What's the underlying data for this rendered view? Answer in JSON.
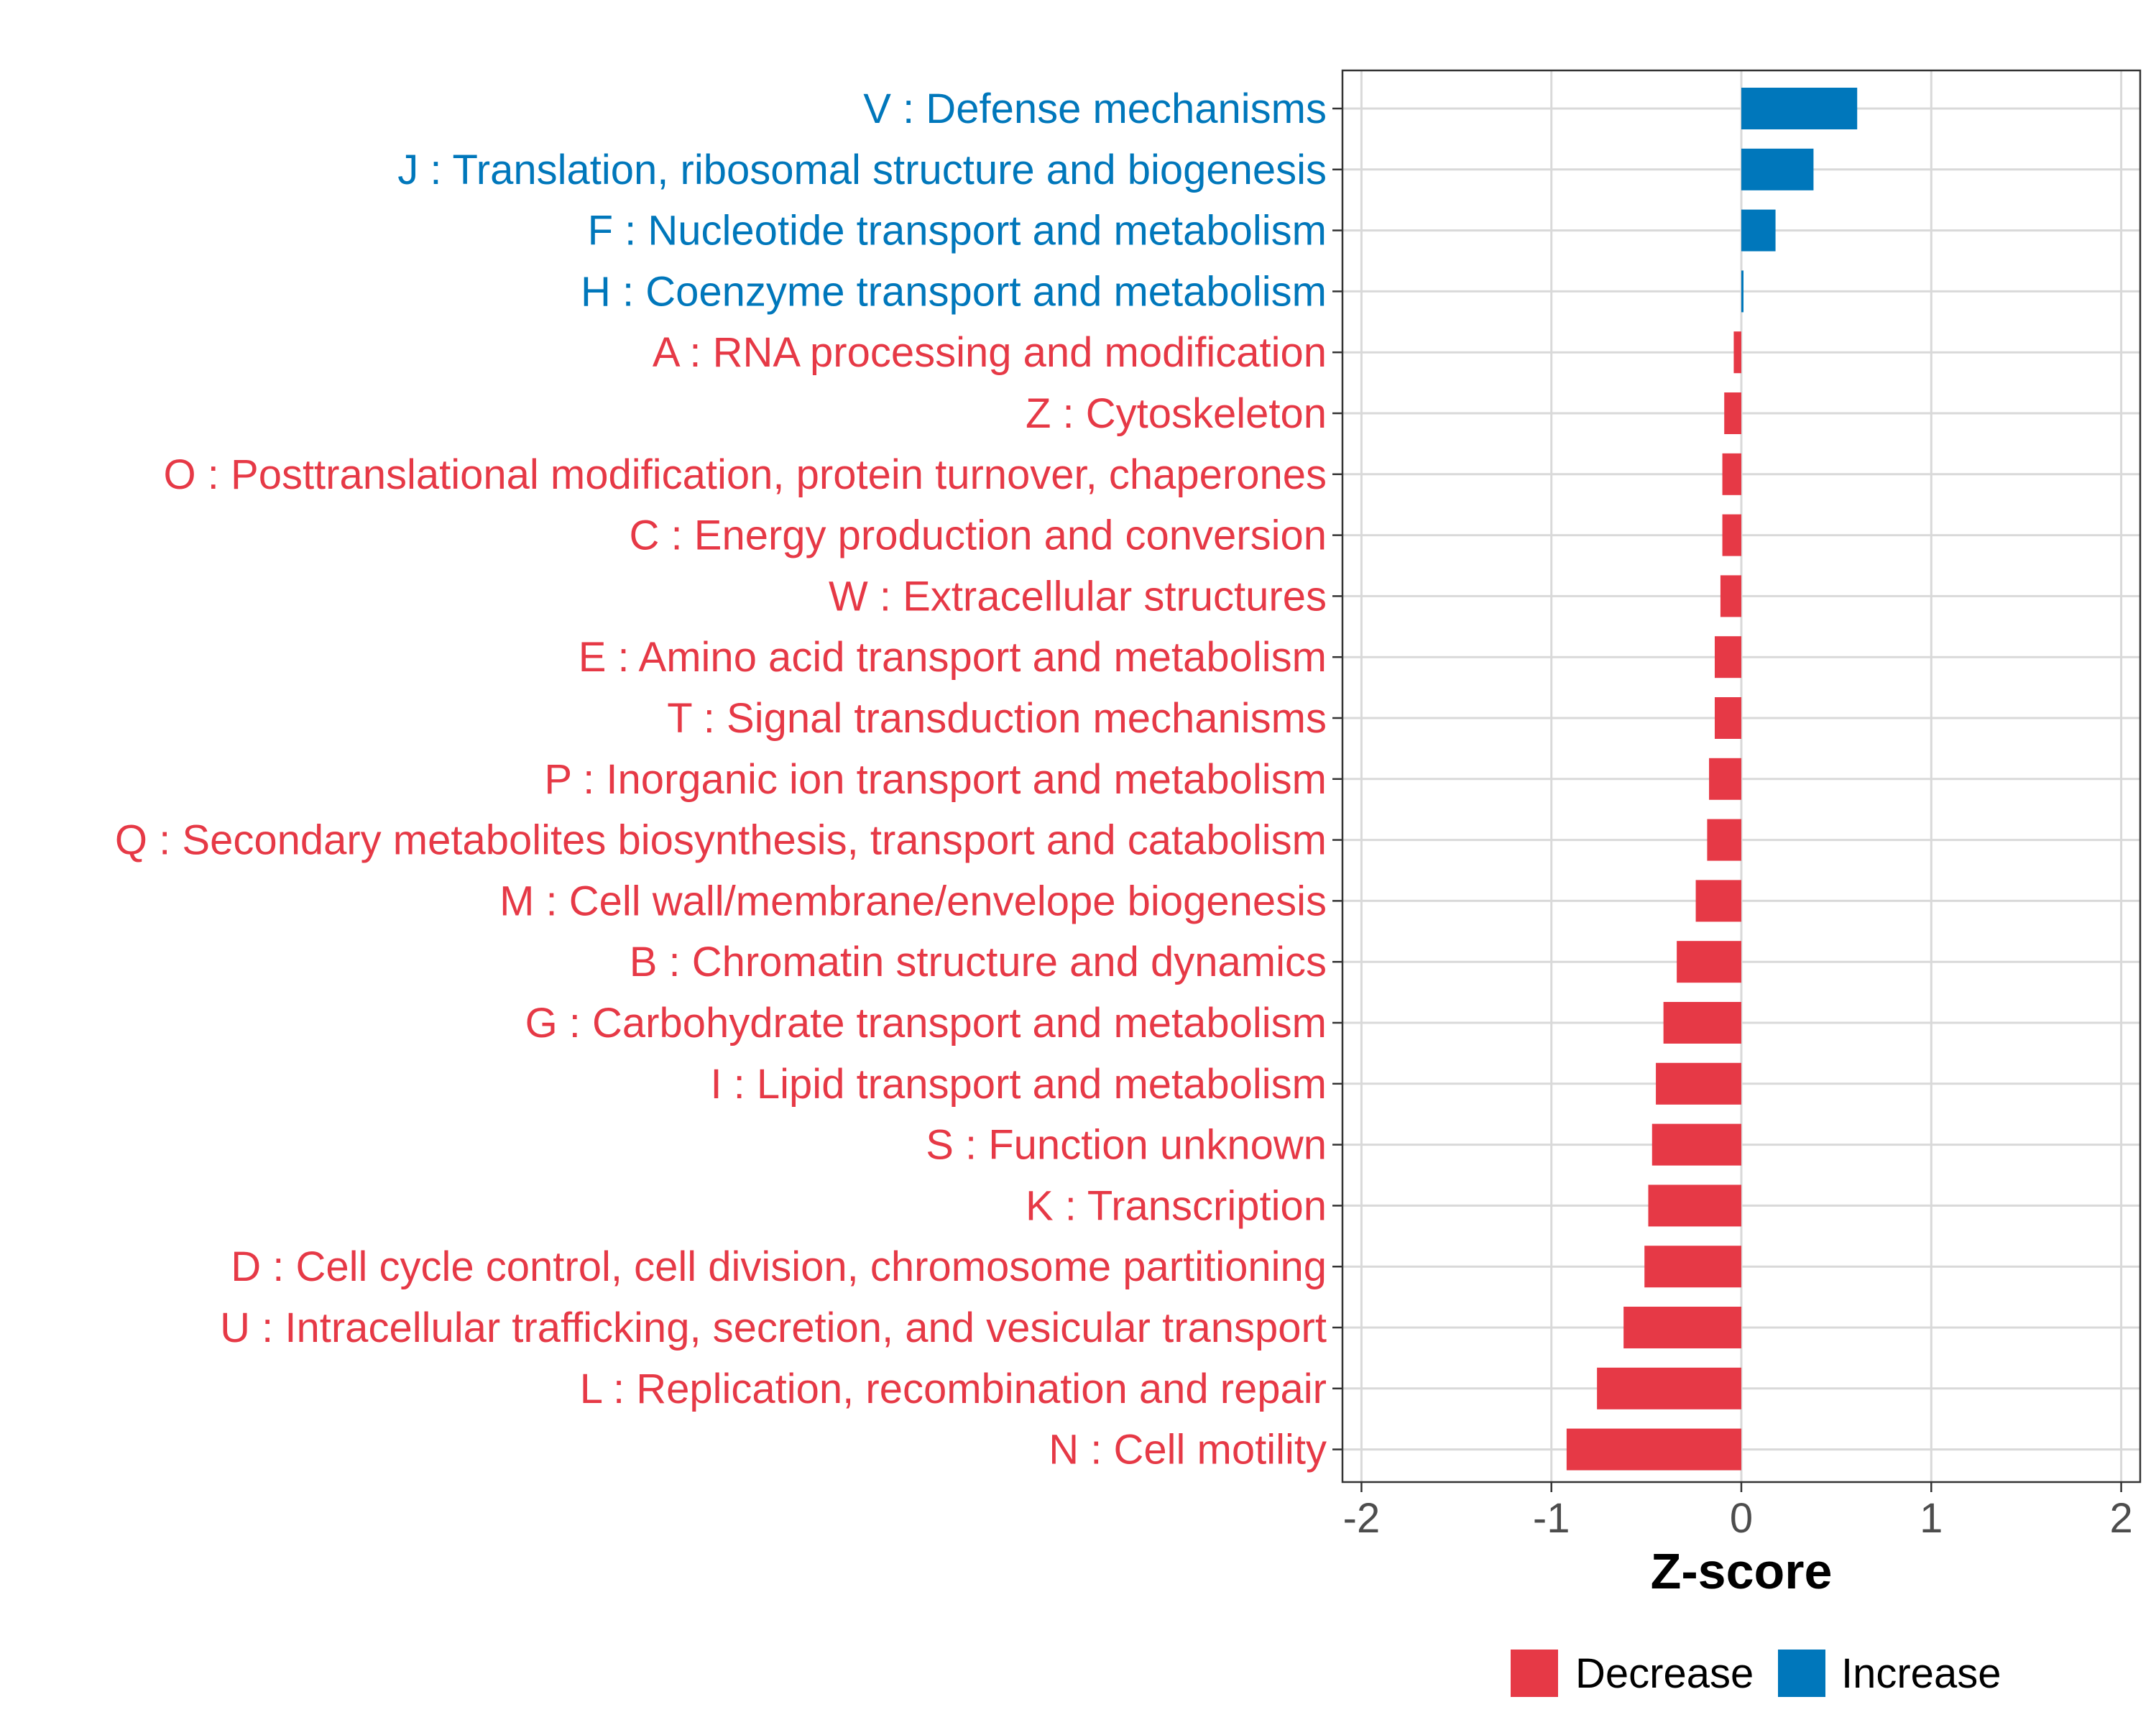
{
  "colors": {
    "decrease": "#e63946",
    "increase": "#0077bb",
    "grid": "#d9d9d9",
    "panel_border": "#333333",
    "tick_text": "#4d4d4d"
  },
  "chart_data": {
    "type": "bar",
    "orientation": "horizontal",
    "xlabel": "Z-score",
    "xlim": [
      -2.1,
      2.1
    ],
    "xticks": [
      -2,
      -1,
      0,
      1,
      2
    ],
    "xtick_labels": [
      "-2",
      "-1",
      "0",
      "1",
      "2"
    ],
    "grid": true,
    "legend_position": "bottom",
    "legend": [
      {
        "key": "decrease",
        "label": "Decrease"
      },
      {
        "key": "increase",
        "label": "Increase"
      }
    ],
    "categories": [
      "V : Defense mechanisms",
      "J : Translation, ribosomal structure and biogenesis",
      "F : Nucleotide transport and metabolism",
      "H : Coenzyme transport and metabolism",
      "A : RNA processing and modification",
      "Z : Cytoskeleton",
      "O : Posttranslational modification, protein turnover, chaperones",
      "C : Energy production and conversion",
      "W : Extracellular structures",
      "E : Amino acid transport and metabolism",
      "T : Signal transduction mechanisms",
      "P : Inorganic ion transport and metabolism",
      "Q : Secondary metabolites biosynthesis, transport and catabolism",
      "M : Cell wall/membrane/envelope biogenesis",
      "B : Chromatin structure and dynamics",
      "G : Carbohydrate transport and metabolism",
      "I : Lipid transport and metabolism",
      "S : Function unknown",
      "K : Transcription",
      "D : Cell cycle control, cell division, chromosome partitioning",
      "U : Intracellular trafficking, secretion, and vesicular transport",
      "L : Replication, recombination and repair",
      "N : Cell motility"
    ],
    "values": [
      0.61,
      0.38,
      0.18,
      0.01,
      -0.04,
      -0.09,
      -0.1,
      -0.1,
      -0.11,
      -0.14,
      -0.14,
      -0.17,
      -0.18,
      -0.24,
      -0.34,
      -0.41,
      -0.45,
      -0.47,
      -0.49,
      -0.51,
      -0.62,
      -0.76,
      -0.92
    ],
    "groups": [
      "increase",
      "increase",
      "increase",
      "increase",
      "decrease",
      "decrease",
      "decrease",
      "decrease",
      "decrease",
      "decrease",
      "decrease",
      "decrease",
      "decrease",
      "decrease",
      "decrease",
      "decrease",
      "decrease",
      "decrease",
      "decrease",
      "decrease",
      "decrease",
      "decrease",
      "decrease"
    ]
  }
}
